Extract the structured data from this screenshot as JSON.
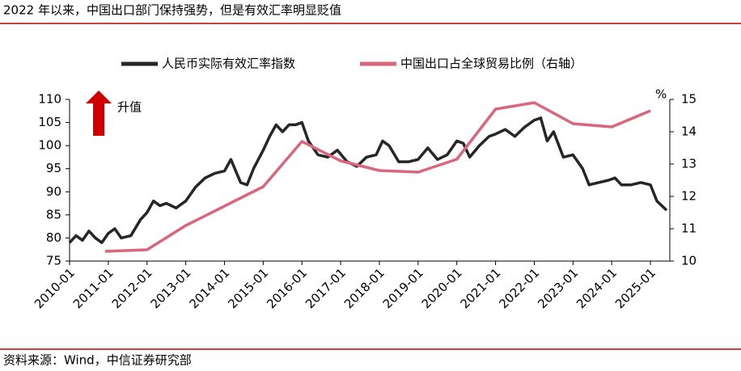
{
  "chart_data": {
    "type": "line",
    "title": "2022 年以来，中国出口部门保持强势，但是有效汇率明显贬值",
    "source": "资料来源：Wind，中信证券研究部",
    "annotation": "升值",
    "y2_unit": "%",
    "xlim": [
      "2010-01",
      "2025-07"
    ],
    "xticks": [
      "2010-01",
      "2011-01",
      "2012-01",
      "2013-01",
      "2014-01",
      "2015-01",
      "2016-01",
      "2017-01",
      "2018-01",
      "2019-01",
      "2020-01",
      "2021-01",
      "2022-01",
      "2023-01",
      "2024-01",
      "2025-01"
    ],
    "ylim": [
      75,
      110
    ],
    "yticks": [
      75,
      80,
      85,
      90,
      95,
      100,
      105,
      110
    ],
    "y2lim": [
      10,
      15
    ],
    "y2ticks": [
      10,
      11,
      12,
      13,
      14,
      15
    ],
    "legend": "top",
    "series": [
      {
        "name": "人民币实际有效汇率指数",
        "color": "#262626",
        "x": [
          "2010-01",
          "2010-03",
          "2010-05",
          "2010-07",
          "2010-09",
          "2010-11",
          "2011-01",
          "2011-03",
          "2011-05",
          "2011-08",
          "2011-11",
          "2012-01",
          "2012-03",
          "2012-05",
          "2012-07",
          "2012-10",
          "2013-01",
          "2013-04",
          "2013-07",
          "2013-10",
          "2014-01",
          "2014-03",
          "2014-06",
          "2014-08",
          "2014-10",
          "2015-01",
          "2015-03",
          "2015-05",
          "2015-07",
          "2015-09",
          "2015-11",
          "2016-01",
          "2016-03",
          "2016-06",
          "2016-09",
          "2016-12",
          "2017-03",
          "2017-06",
          "2017-09",
          "2017-12",
          "2018-02",
          "2018-04",
          "2018-07",
          "2018-10",
          "2019-01",
          "2019-04",
          "2019-07",
          "2019-10",
          "2020-01",
          "2020-03",
          "2020-05",
          "2020-08",
          "2020-11",
          "2021-01",
          "2021-04",
          "2021-07",
          "2021-10",
          "2022-01",
          "2022-03",
          "2022-05",
          "2022-07",
          "2022-10",
          "2023-01",
          "2023-04",
          "2023-06",
          "2023-09",
          "2023-12",
          "2024-02",
          "2024-04",
          "2024-07",
          "2024-10",
          "2025-01",
          "2025-03",
          "2025-06"
        ],
        "values": [
          79,
          80.5,
          79.5,
          81.5,
          80,
          79,
          81,
          82,
          80,
          80.5,
          84,
          85.5,
          88,
          87,
          87.5,
          86.5,
          88,
          91,
          93,
          94,
          94.5,
          97,
          92,
          91.5,
          95,
          99,
          102,
          104.5,
          103,
          104.5,
          104.5,
          105,
          101,
          98,
          97.5,
          99,
          96.5,
          95.5,
          97.5,
          98,
          101,
          100,
          96.5,
          96.5,
          97,
          99.5,
          97,
          98,
          101,
          100.5,
          97.5,
          100,
          102,
          102.5,
          103.5,
          102,
          104,
          105.5,
          106,
          101,
          103,
          97.5,
          98,
          95,
          91.5,
          92,
          92.5,
          93,
          91.5,
          91.5,
          92,
          91.5,
          88,
          86
        ]
      },
      {
        "name": "中国出口占全球贸易比例（右轴）",
        "color": "#d9667a",
        "axis": "y2",
        "x": [
          "2010-12",
          "2012-01",
          "2013-01",
          "2014-01",
          "2015-01",
          "2016-01",
          "2017-01",
          "2018-01",
          "2019-01",
          "2020-01",
          "2021-01",
          "2022-01",
          "2023-01",
          "2024-01",
          "2025-01"
        ],
        "values": [
          10.3,
          10.35,
          11.1,
          11.7,
          12.3,
          13.7,
          13.1,
          12.8,
          12.75,
          13.15,
          14.7,
          14.9,
          14.25,
          14.15,
          14.65
        ]
      }
    ]
  }
}
